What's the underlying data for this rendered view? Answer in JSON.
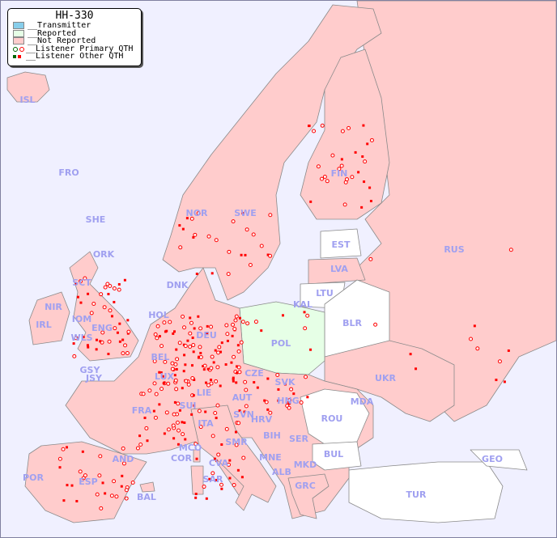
{
  "legend": {
    "title": "HH-330",
    "items": [
      {
        "label": "__Transmitter",
        "color": "#87ceeb"
      },
      {
        "label": "__Reported",
        "color": "#e6ffe6"
      },
      {
        "label": "__Not Reported",
        "color": "#ffcccc"
      },
      {
        "label": "__Listener Primary QTH",
        "colors": [
          "#006400",
          "#ff0000"
        ]
      },
      {
        "label": "__Listener Other QTH",
        "colors": [
          "#006400",
          "#ff0000"
        ]
      }
    ]
  },
  "colors": {
    "background": "#f0f0ff",
    "not_reported": "#ffcccc",
    "reported": "#e6ffe6",
    "no_data": "#ffffff",
    "marker": "#ff0000",
    "label": "#a0a0f0"
  },
  "reported_countries": [
    "POL"
  ],
  "countries": [
    "ISL",
    "FRO",
    "SHE",
    "ORK",
    "NOR",
    "SWE",
    "FIN",
    "EST",
    "LVA",
    "LTU",
    "RUS",
    "DNK",
    "KAL",
    "HOL",
    "BLR",
    "IRL",
    "NIR",
    "SCT",
    "IOM",
    "WLS",
    "ENG",
    "GSY",
    "JSY",
    "DEU",
    "POL",
    "BEL",
    "LUX",
    "CZE",
    "SVK",
    "UKR",
    "FRA",
    "SUI",
    "LIE",
    "AUT",
    "HNG",
    "MDA",
    "SVN",
    "HRV",
    "ROU",
    "ITA",
    "BIH",
    "SER",
    "MCO",
    "SMR",
    "COR",
    "AND",
    "CVA",
    "MNE",
    "BUL",
    "GEO",
    "MKD",
    "ALB",
    "POR",
    "ESP",
    "SAR",
    "GRC",
    "TUR",
    "BAL"
  ]
}
